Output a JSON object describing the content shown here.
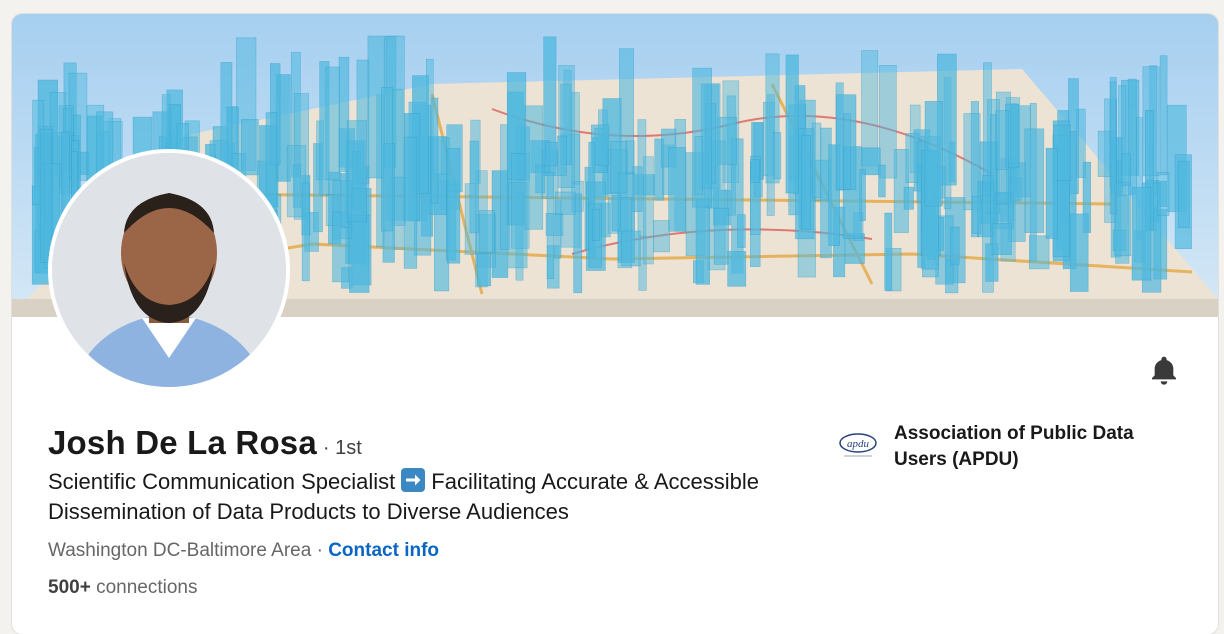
{
  "profile": {
    "name": "Josh De La Rosa",
    "degree": "· 1st",
    "headline_part1": "Scientific Communication Specialist",
    "headline_part2": "Facilitating Accurate & Accessible Dissemination of Data Products to Diverse Audiences",
    "location": "Washington DC-Baltimore Area",
    "separator": "·",
    "contact_label": "Contact info",
    "connections_count": "500+",
    "connections_label": "connections"
  },
  "organization": {
    "name": "Association of Public Data Users (APDU)",
    "logo_text": "apdu"
  },
  "icons": {
    "notify": "bell-icon",
    "headline_arrow": "right-arrow-emoji"
  },
  "colors": {
    "link": "#0a66c2",
    "banner_sky": "#a9d2f0",
    "bars": "#4fb8de"
  }
}
